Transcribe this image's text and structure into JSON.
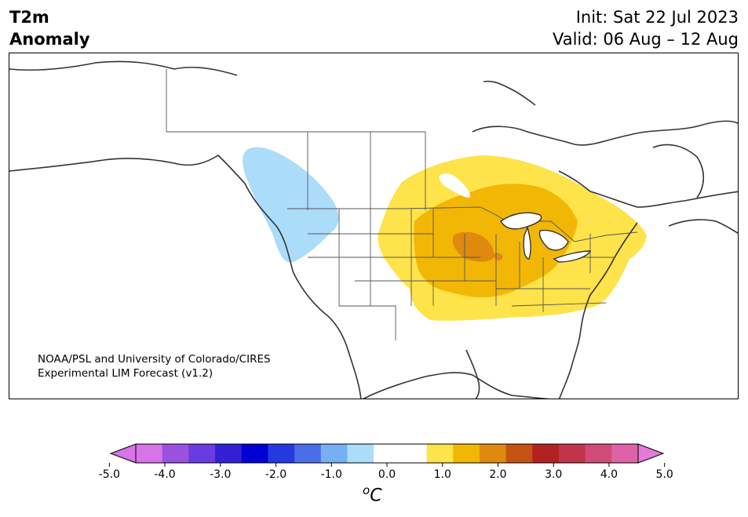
{
  "header": {
    "variable_line1": "T2m",
    "variable_line2": "Anomaly",
    "init_text": "Init: Sat 22 Jul 2023",
    "valid_text": "Valid: 06 Aug – 12 Aug"
  },
  "map": {
    "region": "North America",
    "credit_line1": "NOAA/PSL and University of Colorado/CIRES",
    "credit_line2": "Experimental LIM Forecast (v1.2)",
    "anomaly_areas": [
      {
        "area": "Pacific Northwest / southern British Columbia",
        "level": "-0.5 to -1.0",
        "color": "#abdcfa"
      },
      {
        "area": "Central Plains to Northeast",
        "level": "0.5 to 1.0",
        "color": "#fee34a"
      },
      {
        "area": "Central Plains / Midwest core",
        "level": "1.0 to 1.5",
        "color": "#f2b705"
      },
      {
        "area": "Nebraska / Iowa / Missouri",
        "level": "1.5 to 2.0",
        "color": "#e0890f"
      }
    ]
  },
  "colorbar": {
    "tick_labels": [
      "-5.0",
      "-4.0",
      "-3.0",
      "-2.0",
      "-1.0",
      "0.0",
      "1.0",
      "2.0",
      "3.0",
      "4.0",
      "5.0"
    ],
    "bins": [
      "#d774e8",
      "#9b51e0",
      "#6a3be0",
      "#3420d4",
      "#0000d2",
      "#2439e0",
      "#4a6ee8",
      "#76b0f2",
      "#abdcfa",
      "#ffffff",
      "#ffffff",
      "#fee34a",
      "#f2b705",
      "#e0890f",
      "#c65214",
      "#b22222",
      "#c2344a",
      "#d14b78",
      "#df62a8"
    ],
    "under_color": "#d774e8",
    "over_color": "#e779d8",
    "unit_base": "C",
    "unit_super": "o"
  }
}
